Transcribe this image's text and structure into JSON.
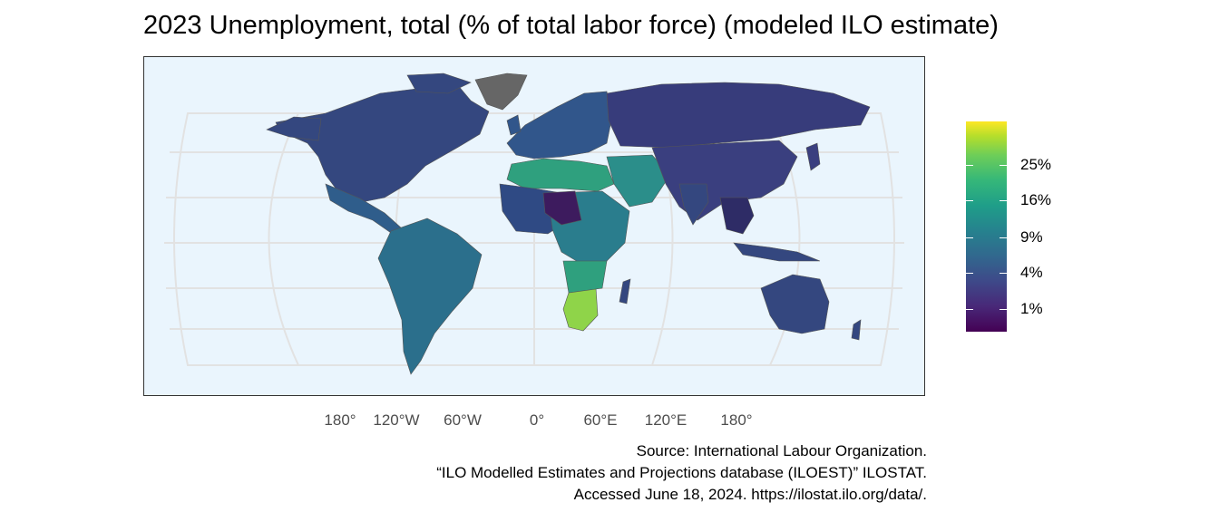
{
  "map": {
    "title": "2023 Unemployment, total (% of total labor force) (modeled ILO estimate)",
    "projection": "robinson",
    "background_color": "#eaf5fd",
    "no_data_color": "#666666",
    "longitude_ticks": [
      "180°",
      "120°W",
      "60°W",
      "0°",
      "60°E",
      "120°E",
      "180°"
    ],
    "legend": {
      "colormap": "viridis",
      "labels": [
        "25%",
        "16%",
        "9%",
        "4%",
        "1%"
      ]
    },
    "caption": [
      "Source: International Labour Organization.",
      "“ILO Modelled Estimates and Projections database (ILOEST)” ILOSTAT.",
      "Accessed June 18, 2024. https://ilostat.ilo.org/data/."
    ],
    "regions": [
      {
        "name": "North America",
        "color": "#34477f"
      },
      {
        "name": "Greenland",
        "color": "#666666"
      },
      {
        "name": "Central America",
        "color": "#2f5d8b"
      },
      {
        "name": "South America",
        "color": "#2b6f8c"
      },
      {
        "name": "Europe",
        "color": "#31568b"
      },
      {
        "name": "North Africa",
        "color": "#2fa07e"
      },
      {
        "name": "West Africa",
        "color": "#2f4a84"
      },
      {
        "name": "Central Africa",
        "color": "#2a7d8d"
      },
      {
        "name": "Southern Africa",
        "color": "#8fd449"
      },
      {
        "name": "Russia",
        "color": "#373c7b"
      },
      {
        "name": "Middle East",
        "color": "#2b8e8a"
      },
      {
        "name": "Asia",
        "color": "#3a3f7f"
      },
      {
        "name": "Southeast Asia",
        "color": "#2e2c66"
      },
      {
        "name": "Australia",
        "color": "#34477f"
      }
    ]
  }
}
